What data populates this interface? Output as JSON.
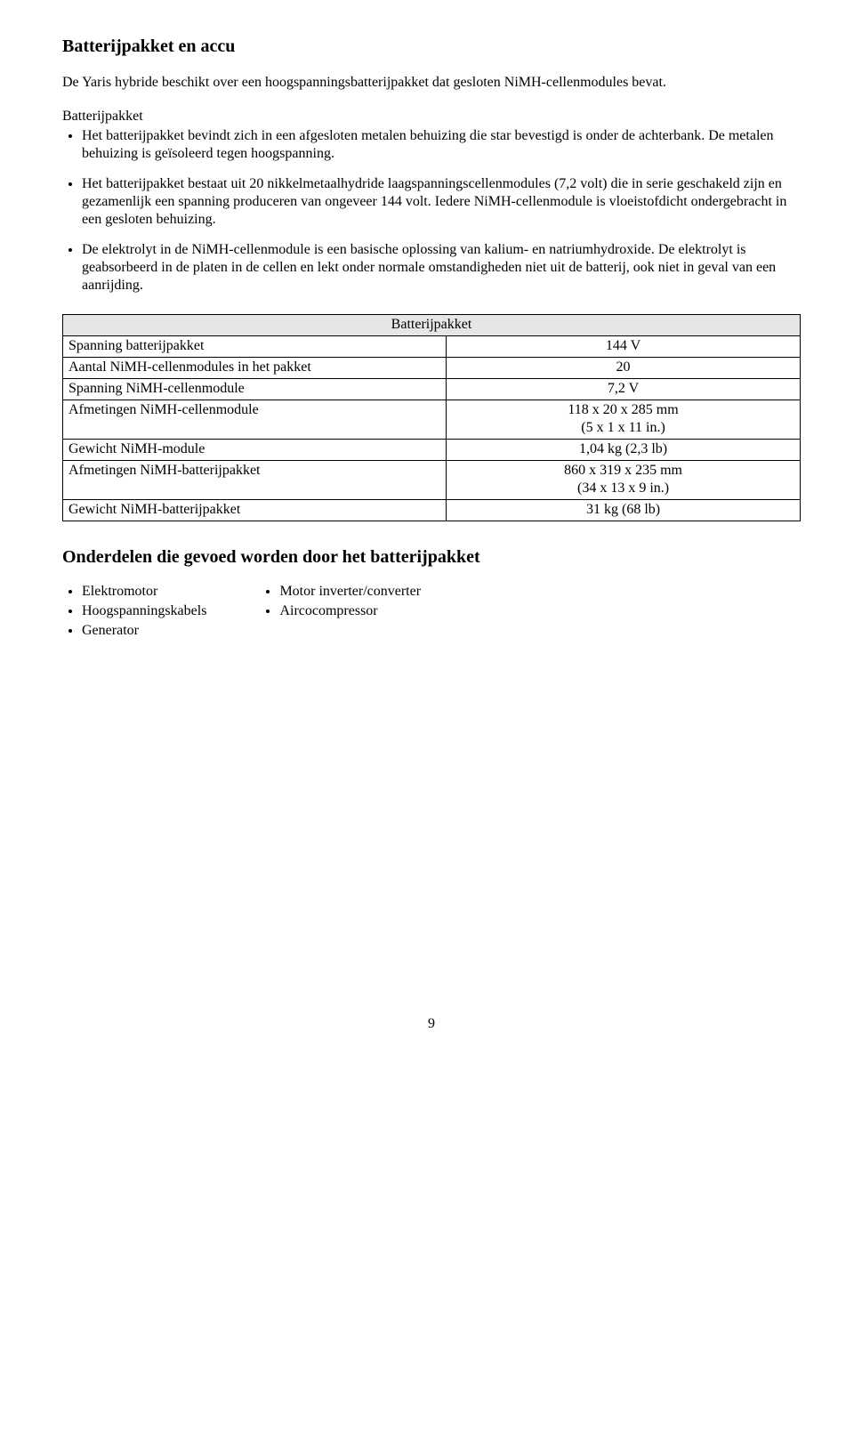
{
  "title1": "Batterijpakket en accu",
  "intro": "De Yaris hybride beschikt over een hoogspanningsbatterijpakket dat gesloten NiMH-cellenmodules bevat.",
  "subhead": "Batterijpakket",
  "bullets": [
    "Het batterijpakket bevindt zich in een afgesloten metalen behuizing die star bevestigd is onder de achterbank. De metalen behuizing is geïsoleerd tegen hoogspanning.",
    "Het batterijpakket bestaat uit 20 nikkelmetaalhydride laagspanningscellenmodules (7,2 volt) die in serie geschakeld zijn en gezamenlijk een spanning produceren van ongeveer 144 volt. Iedere NiMH-cellenmodule is vloeistofdicht ondergebracht in een gesloten behuizing.",
    "De elektrolyt in de NiMH-cellenmodule is een basische oplossing van kalium- en natriumhydroxide. De elektrolyt is geabsorbeerd in de platen in de cellen en lekt onder normale omstandigheden niet uit de batterij, ook niet in geval van een aanrijding."
  ],
  "table": {
    "header": "Batterijpakket",
    "rows": [
      {
        "label": "Spanning batterijpakket",
        "value": "144 V"
      },
      {
        "label": "Aantal NiMH-cellenmodules in het pakket",
        "value": "20"
      },
      {
        "label": "Spanning NiMH-cellenmodule",
        "value": "7,2 V"
      },
      {
        "label": "Afmetingen NiMH-cellenmodule",
        "value": "118 x 20 x 285 mm\n(5 x 1 x 11 in.)"
      },
      {
        "label": "Gewicht NiMH-module",
        "value": "1,04 kg (2,3 lb)"
      },
      {
        "label": "Afmetingen NiMH-batterijpakket",
        "value": "860 x 319 x 235 mm\n(34 x 13 x 9 in.)"
      },
      {
        "label": "Gewicht NiMH-batterijpakket",
        "value": "31 kg (68 lb)"
      }
    ]
  },
  "title2": "Onderdelen die gevoed worden door het batterijpakket",
  "col1": [
    "Elektromotor",
    "Hoogspanningskabels",
    "Generator"
  ],
  "col2": [
    "Motor inverter/converter",
    "Aircocompressor"
  ],
  "pageNumber": "9"
}
